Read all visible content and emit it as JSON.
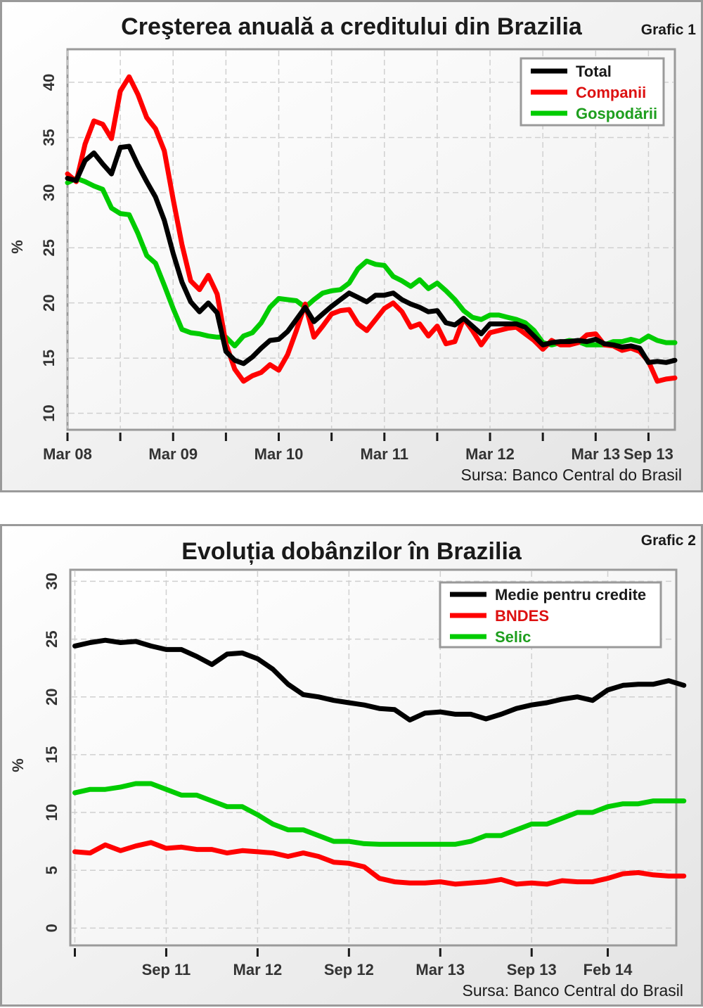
{
  "charts": [
    {
      "grafic_label": "Grafic 1",
      "source": "Sursa: Banco Central do Brasil",
      "chart_data": {
        "type": "line",
        "title": "Creşterea anuală a creditului din Brazilia",
        "xlabel": "",
        "ylabel": "%",
        "ylim": [
          8.5,
          43
        ],
        "yticks": [
          10,
          15,
          20,
          25,
          30,
          35,
          40
        ],
        "xrange": [
          0,
          69
        ],
        "x_tick_labels": [
          {
            "x": 0,
            "label": "Mar 08"
          },
          {
            "x": 12,
            "label": "Mar 09"
          },
          {
            "x": 24,
            "label": "Mar 10"
          },
          {
            "x": 36,
            "label": "Mar 11"
          },
          {
            "x": 48,
            "label": "Mar 12"
          },
          {
            "x": 60,
            "label": "Mar 13"
          },
          {
            "x": 66,
            "label": "Sep 13"
          }
        ],
        "x_tick_marks": [
          0,
          6,
          12,
          18,
          24,
          30,
          36,
          42,
          48,
          54,
          60,
          66
        ],
        "grid": true,
        "legend_position": "top-right",
        "series": [
          {
            "name": "Total",
            "color": "#000000",
            "values": [
              31.3,
              31.1,
              32.9,
              33.6,
              32.6,
              31.7,
              34.1,
              34.2,
              32.5,
              31.0,
              29.6,
              27.5,
              24.5,
              21.9,
              20.1,
              19.2,
              20.0,
              19.1,
              15.6,
              14.8,
              14.5,
              15.1,
              15.9,
              16.6,
              16.7,
              17.4,
              18.5,
              19.6,
              18.3,
              19.0,
              19.7,
              20.3,
              20.9,
              20.5,
              20.1,
              20.7,
              20.7,
              20.9,
              20.3,
              19.9,
              19.6,
              19.2,
              19.3,
              18.2,
              18.0,
              18.6,
              17.9,
              17.2,
              18.1,
              18.1,
              18.1,
              18.1,
              17.8,
              17.0,
              16.2,
              16.4,
              16.5,
              16.5,
              16.6,
              16.5,
              16.7,
              16.3,
              16.2,
              16.0,
              16.1,
              15.9,
              14.6,
              14.7,
              14.6,
              14.8
            ]
          },
          {
            "name": "Companii",
            "color": "#ff0000",
            "values": [
              31.7,
              31.0,
              34.4,
              36.5,
              36.2,
              34.9,
              39.2,
              40.5,
              38.9,
              36.8,
              35.8,
              33.8,
              29.4,
              25.3,
              22.0,
              21.2,
              22.5,
              20.8,
              16.3,
              14.0,
              12.9,
              13.4,
              13.7,
              14.4,
              13.9,
              15.3,
              17.5,
              19.9,
              16.9,
              17.9,
              19.0,
              19.3,
              19.4,
              18.1,
              17.5,
              18.5,
              19.5,
              20.0,
              19.2,
              17.8,
              18.1,
              17.0,
              17.9,
              16.3,
              16.5,
              18.6,
              17.5,
              16.2,
              17.3,
              17.5,
              17.7,
              17.8,
              17.2,
              16.6,
              15.8,
              16.6,
              16.2,
              16.2,
              16.4,
              17.1,
              17.2,
              16.2,
              16.1,
              15.7,
              15.9,
              15.6,
              14.7,
              12.9,
              13.1,
              13.2
            ]
          },
          {
            "name": "Gospodării",
            "color": "#00cc00",
            "values": [
              30.9,
              31.3,
              31.0,
              30.6,
              30.3,
              28.6,
              28.1,
              28.0,
              26.3,
              24.3,
              23.6,
              21.6,
              19.5,
              17.6,
              17.3,
              17.2,
              17.0,
              16.9,
              16.9,
              16.1,
              17.0,
              17.3,
              18.2,
              19.6,
              20.4,
              20.3,
              20.2,
              19.6,
              20.3,
              20.9,
              21.1,
              21.2,
              21.8,
              23.1,
              23.8,
              23.5,
              23.4,
              22.4,
              22.0,
              21.5,
              22.1,
              21.3,
              21.8,
              21.1,
              20.3,
              19.3,
              18.7,
              18.5,
              18.9,
              18.9,
              18.7,
              18.5,
              18.2,
              17.5,
              16.4,
              16.2,
              16.4,
              16.6,
              16.5,
              16.2,
              16.2,
              16.2,
              16.5,
              16.5,
              16.7,
              16.5,
              17.0,
              16.6,
              16.4,
              16.4
            ]
          }
        ]
      }
    },
    {
      "grafic_label": "Grafic 2",
      "source": "Sursa: Banco Central do Brasil",
      "chart_data": {
        "type": "line",
        "title": "Evoluția dobânzilor în Brazilia",
        "xlabel": "",
        "ylabel": "%",
        "ylim": [
          -1.5,
          31
        ],
        "yticks": [
          0,
          5,
          10,
          15,
          20,
          25,
          30
        ],
        "xrange": [
          -0.3,
          39.5
        ],
        "x_tick_labels": [
          {
            "x": 6,
            "label": "Sep 11"
          },
          {
            "x": 12,
            "label": "Mar 12"
          },
          {
            "x": 18,
            "label": "Sep 12"
          },
          {
            "x": 24,
            "label": "Mar 13"
          },
          {
            "x": 30,
            "label": "Sep 13"
          },
          {
            "x": 35,
            "label": "Feb 14"
          }
        ],
        "x_tick_marks": [
          0,
          6,
          12,
          18,
          24,
          30,
          35
        ],
        "grid": true,
        "legend_position": "top-right",
        "series": [
          {
            "name": "Medie pentru credite",
            "color": "#000000",
            "values": [
              24.4,
              24.7,
              24.9,
              24.7,
              24.8,
              24.4,
              24.1,
              24.1,
              23.5,
              22.8,
              23.7,
              23.8,
              23.3,
              22.4,
              21.1,
              20.2,
              20.0,
              19.7,
              19.5,
              19.3,
              19.0,
              18.9,
              18.0,
              18.6,
              18.7,
              18.5,
              18.5,
              18.1,
              18.5,
              19.0,
              19.3,
              19.5,
              19.8,
              20.0,
              19.7,
              20.6,
              21.0,
              21.1,
              21.1,
              21.4,
              21.0
            ]
          },
          {
            "name": "BNDES",
            "color": "#ff0000",
            "values": [
              6.6,
              6.5,
              7.2,
              6.7,
              7.1,
              7.4,
              6.9,
              7.0,
              6.8,
              6.8,
              6.5,
              6.7,
              6.6,
              6.5,
              6.2,
              6.5,
              6.2,
              5.7,
              5.6,
              5.3,
              4.3,
              4.0,
              3.9,
              3.9,
              4.0,
              3.8,
              3.9,
              4.0,
              4.2,
              3.8,
              3.9,
              3.8,
              4.1,
              4.0,
              4.0,
              4.3,
              4.7,
              4.8,
              4.6,
              4.5,
              4.5
            ]
          },
          {
            "name": "Selic",
            "color": "#00cc00",
            "values": [
              11.7,
              12.0,
              12.0,
              12.2,
              12.5,
              12.5,
              12.0,
              11.5,
              11.5,
              11.0,
              10.5,
              10.5,
              9.8,
              9.0,
              8.5,
              8.5,
              8.0,
              7.5,
              7.5,
              7.3,
              7.25,
              7.25,
              7.25,
              7.25,
              7.25,
              7.25,
              7.5,
              8.0,
              8.0,
              8.5,
              9.0,
              9.0,
              9.5,
              10.0,
              10.0,
              10.5,
              10.75,
              10.75,
              11.0,
              11.0,
              11.0
            ]
          }
        ]
      }
    }
  ]
}
